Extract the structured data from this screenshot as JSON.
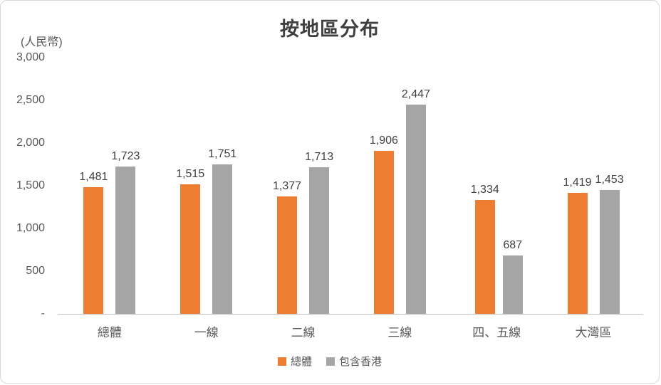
{
  "chart_data": {
    "type": "bar",
    "title": "按地區分布",
    "ylabel": "(人民幣)",
    "categories": [
      "總體",
      "一線",
      "二線",
      "三線",
      "四、五線",
      "大灣區"
    ],
    "series": [
      {
        "name": "總體",
        "color": "#ED7D31",
        "values": [
          1481,
          1515,
          1377,
          1906,
          1334,
          1419
        ]
      },
      {
        "name": "包含香港",
        "color": "#A5A5A5",
        "values": [
          1723,
          1751,
          1713,
          2447,
          687,
          1453
        ]
      }
    ],
    "ylim": [
      0,
      3000
    ],
    "yticks": [
      "3,000",
      "2,500",
      "2,000",
      "1,500",
      "1,000",
      "500",
      "-"
    ],
    "grid": false,
    "legend_position": "bottom"
  },
  "colors": {
    "series_overall": "#ED7D31",
    "series_incl_hk": "#A5A5A5",
    "axis_line": "#BFBFBF",
    "title_text": "#3F3F3F",
    "tick_text": "#595959",
    "value_text": "#404040",
    "card_border": "#D9D9D9"
  }
}
